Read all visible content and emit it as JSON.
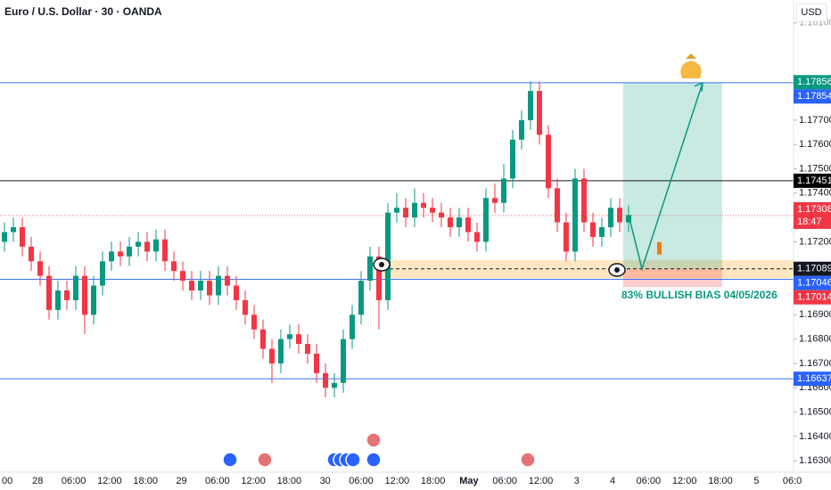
{
  "chart_data": {
    "type": "candlestick",
    "title": "Euro / U.S. Dollar · 30 · OANDA",
    "currency": "USD",
    "up_color": "#089981",
    "down_color": "#f23645",
    "ylim": [
      1.16253,
      1.18194
    ],
    "yticks": [
      {
        "value": 1.163,
        "label": "1.16300"
      },
      {
        "value": 1.164,
        "label": "1.16400"
      },
      {
        "value": 1.165,
        "label": "1.16500"
      },
      {
        "value": 1.166,
        "label": "1.16600"
      },
      {
        "value": 1.167,
        "label": "1.16700"
      },
      {
        "value": 1.168,
        "label": "1.16800"
      },
      {
        "value": 1.169,
        "label": "1.16900"
      },
      {
        "value": 1.17,
        "label": "1.17000"
      },
      {
        "value": 1.171,
        "label": "1.17100"
      },
      {
        "value": 1.172,
        "label": "1.17200"
      },
      {
        "value": 1.173,
        "label": "1.17300"
      },
      {
        "value": 1.174,
        "label": "1.17400"
      },
      {
        "value": 1.175,
        "label": "1.17500"
      },
      {
        "value": 1.176,
        "label": "1.17600"
      },
      {
        "value": 1.177,
        "label": "1.17700"
      },
      {
        "value": 1.178,
        "label": "1.17800"
      },
      {
        "value": 1.181,
        "label": "1.18100"
      }
    ],
    "xticks": [
      "00",
      "28",
      "06:00",
      "12:00",
      "18:00",
      "29",
      "06:00",
      "12:00",
      "18:00",
      "30",
      "06:00",
      "12:00",
      "18:00",
      "May",
      "06:00",
      "12:00",
      "3",
      "4",
      "06:00",
      "12:00",
      "18:00",
      "5",
      "06:0"
    ],
    "open": [
      1.172,
      1.1724,
      1.1726,
      1.1718,
      1.1712,
      1.1706,
      1.1692,
      1.17,
      1.1696,
      1.1706,
      1.169,
      1.1702,
      1.1712,
      1.1716,
      1.1714,
      1.1718,
      1.172,
      1.1716,
      1.1721,
      1.1712,
      1.1708,
      1.1704,
      1.17,
      1.1704,
      1.1698,
      1.1706,
      1.1702,
      1.1696,
      1.169,
      1.1684,
      1.1676,
      1.167,
      1.168,
      1.1682,
      1.1678,
      1.1674,
      1.1666,
      1.166,
      1.1662,
      1.168,
      1.169,
      1.1704,
      1.1714,
      1.1696,
      1.1732,
      1.1734,
      1.173,
      1.1736,
      1.1734,
      1.1732,
      1.173,
      1.1726,
      1.173,
      1.1724,
      1.172,
      1.1738,
      1.1736,
      1.1746,
      1.1762,
      1.177,
      1.1782,
      1.1764,
      1.1742,
      1.1728,
      1.1716,
      1.1746,
      1.1728,
      1.1722,
      1.1726,
      1.1734,
      1.1728
    ],
    "high": [
      1.1728,
      1.173,
      1.173,
      1.1722,
      1.1716,
      1.171,
      1.1704,
      1.1704,
      1.171,
      1.171,
      1.1706,
      1.1716,
      1.172,
      1.172,
      1.1722,
      1.1724,
      1.1724,
      1.1725,
      1.1725,
      1.1716,
      1.1712,
      1.1708,
      1.1708,
      1.1708,
      1.171,
      1.171,
      1.1706,
      1.17,
      1.1694,
      1.1688,
      1.168,
      1.1684,
      1.1686,
      1.1686,
      1.1682,
      1.1678,
      1.167,
      1.1666,
      1.1684,
      1.1694,
      1.1708,
      1.1718,
      1.1718,
      1.1736,
      1.174,
      1.1738,
      1.1742,
      1.174,
      1.1738,
      1.1736,
      1.1734,
      1.1734,
      1.1734,
      1.1728,
      1.1742,
      1.1744,
      1.1752,
      1.1766,
      1.1774,
      1.1786,
      1.1786,
      1.1768,
      1.1746,
      1.1732,
      1.175,
      1.175,
      1.1732,
      1.173,
      1.1738,
      1.1738,
      1.1735
    ],
    "low": [
      1.1716,
      1.172,
      1.1714,
      1.1708,
      1.1702,
      1.1688,
      1.1688,
      1.1692,
      1.1692,
      1.1682,
      1.1686,
      1.1698,
      1.1708,
      1.171,
      1.171,
      1.1714,
      1.1712,
      1.1712,
      1.1708,
      1.1704,
      1.17,
      1.1696,
      1.1696,
      1.1694,
      1.1694,
      1.1698,
      1.1692,
      1.1686,
      1.168,
      1.1672,
      1.1662,
      1.1666,
      1.1676,
      1.1674,
      1.167,
      1.1662,
      1.1656,
      1.1656,
      1.1658,
      1.1676,
      1.1686,
      1.17,
      1.1684,
      1.1692,
      1.1728,
      1.1726,
      1.1726,
      1.173,
      1.1728,
      1.1726,
      1.1722,
      1.1722,
      1.172,
      1.1716,
      1.1716,
      1.1732,
      1.1732,
      1.1742,
      1.1758,
      1.1766,
      1.176,
      1.1738,
      1.1724,
      1.1712,
      1.1712,
      1.1724,
      1.1718,
      1.1718,
      1.1722,
      1.1724,
      1.1724
    ],
    "close": [
      1.1724,
      1.1726,
      1.1718,
      1.1712,
      1.1706,
      1.1692,
      1.17,
      1.1696,
      1.1706,
      1.169,
      1.1702,
      1.1712,
      1.1716,
      1.1714,
      1.1718,
      1.172,
      1.1716,
      1.1721,
      1.1712,
      1.1708,
      1.1704,
      1.17,
      1.1704,
      1.1698,
      1.1706,
      1.1702,
      1.1696,
      1.169,
      1.1684,
      1.1676,
      1.167,
      1.168,
      1.1682,
      1.1678,
      1.1674,
      1.1666,
      1.166,
      1.1662,
      1.168,
      1.169,
      1.1704,
      1.1714,
      1.1696,
      1.1732,
      1.1734,
      1.173,
      1.1736,
      1.1734,
      1.1732,
      1.173,
      1.1726,
      1.173,
      1.1724,
      1.172,
      1.1738,
      1.1736,
      1.1746,
      1.1762,
      1.177,
      1.1782,
      1.1764,
      1.1742,
      1.1728,
      1.1716,
      1.1746,
      1.1728,
      1.1722,
      1.1726,
      1.1734,
      1.1728,
      1.1731
    ],
    "price_levels": [
      {
        "value": 1.17856,
        "label": "1.17856",
        "color": "#089981"
      },
      {
        "value": 1.17854,
        "label": "1.17854",
        "color": "#2962ff",
        "line": "solid"
      },
      {
        "value": 1.17451,
        "label": "1.17451",
        "color": "#000000",
        "line": "solid"
      },
      {
        "value": 1.17308,
        "label": "1.17308",
        "sub": "18:47",
        "color": "#f23645",
        "line": "dotted"
      },
      {
        "value": 1.17089,
        "label": "1.17089",
        "color": "#131722"
      },
      {
        "value": 1.17046,
        "label": "1.17046",
        "color": "#2962ff",
        "line": "solid"
      },
      {
        "value": 1.17014,
        "label": "1.17014",
        "color": "#f23645"
      },
      {
        "value": 1.16637,
        "label": "1.16637",
        "color": "#2962ff",
        "line": "solid"
      }
    ],
    "zone": {
      "from": 1.1705,
      "to": 1.17125,
      "color": "#ffe0b2"
    },
    "position": {
      "entry": 1.17089,
      "target": 1.17854,
      "stop": 1.17014
    },
    "annotation": "83% BULLISH BIAS 04/05/2026"
  }
}
